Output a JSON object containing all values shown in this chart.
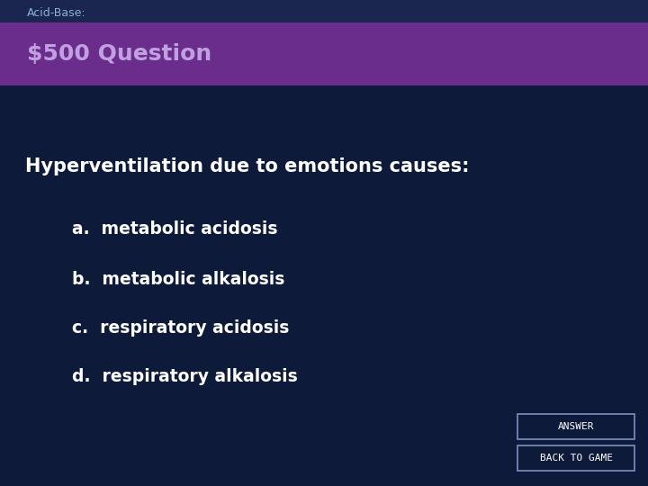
{
  "bg_color": "#0e1a3a",
  "header_band_color": "#6b2d8b",
  "header_top_color": "#1a2550",
  "header_subtitle": "Acid-Base:",
  "header_title": "$500 Question",
  "subtitle_color": "#8ab4cc",
  "title_color": "#c0a0e0",
  "question": "Hyperventilation due to emotions causes:",
  "answers": [
    "a.  metabolic acidosis",
    "b.  metabolic alkalosis",
    "c.  respiratory acidosis",
    "d.  respiratory alkalosis"
  ],
  "text_color": "#ffffff",
  "btn_text_color": "#ffffff",
  "btn_border_color": "#8090c0",
  "btn1_label": "ANSWER",
  "btn2_label": "BACK TO GAME",
  "btn_bg_color": "#0e1a3a",
  "fig_w": 7.2,
  "fig_h": 5.4,
  "dpi": 100
}
